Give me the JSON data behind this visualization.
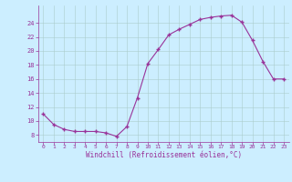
{
  "x": [
    0,
    1,
    2,
    3,
    4,
    5,
    6,
    7,
    8,
    9,
    10,
    11,
    12,
    13,
    14,
    15,
    16,
    17,
    18,
    19,
    20,
    21,
    22,
    23
  ],
  "y": [
    11,
    9.5,
    8.8,
    8.5,
    8.5,
    8.5,
    8.3,
    7.8,
    9.2,
    13.3,
    18.2,
    20.2,
    22.3,
    23.1,
    23.8,
    24.5,
    24.8,
    25.0,
    25.1,
    24.1,
    21.5,
    18.5,
    16.0,
    16.0
  ],
  "line_color": "#993399",
  "marker": "+",
  "marker_color": "#993399",
  "bg_color": "#cceeff",
  "grid_color": "#aacccc",
  "xlabel": "Windchill (Refroidissement éolien,°C)",
  "xlabel_color": "#993399",
  "tick_color": "#993399",
  "yticks": [
    8,
    10,
    12,
    14,
    16,
    18,
    20,
    22,
    24
  ],
  "xlim": [
    -0.5,
    23.5
  ],
  "ylim": [
    7.0,
    26.5
  ],
  "xticks": [
    0,
    1,
    2,
    3,
    4,
    5,
    6,
    7,
    8,
    9,
    10,
    11,
    12,
    13,
    14,
    15,
    16,
    17,
    18,
    19,
    20,
    21,
    22,
    23
  ]
}
